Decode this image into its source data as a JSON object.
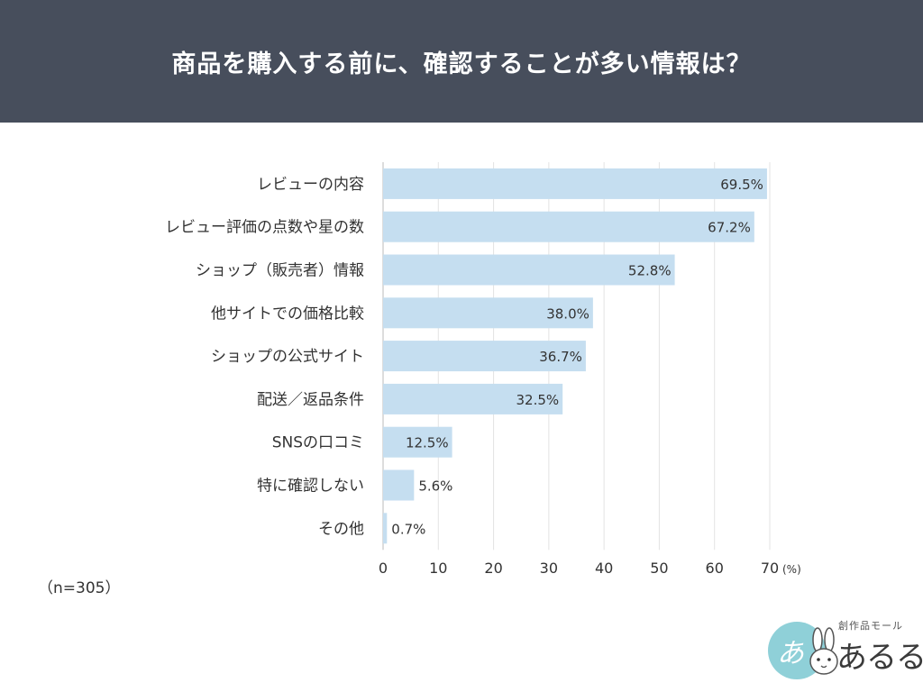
{
  "header": {
    "title": "商品を購入する前に、確認することが多い情報は？"
  },
  "chart_data": {
    "type": "bar",
    "orientation": "horizontal",
    "title": "商品を購入する前に、確認することが多い情報は？",
    "categories": [
      "レビューの内容",
      "レビュー評価の点数や星の数",
      "ショップ（販売者）情報",
      "他サイトでの価格比較",
      "ショップの公式サイト",
      "配送／返品条件",
      "SNSの口コミ",
      "特に確認しない",
      "その他"
    ],
    "values": [
      69.5,
      67.2,
      52.8,
      38.0,
      36.7,
      32.5,
      12.5,
      5.6,
      0.7
    ],
    "value_labels": [
      "69.5%",
      "67.2%",
      "52.8%",
      "38.0%",
      "36.7%",
      "32.5%",
      "12.5%",
      "5.6%",
      "0.7%"
    ],
    "xlim": [
      0,
      70
    ],
    "xticks": [
      "0",
      "10",
      "20",
      "30",
      "40",
      "50",
      "60",
      "70"
    ],
    "x_unit_label": "(%)",
    "grid": true,
    "bar_color": "#c5def0",
    "grid_color": "#e3e3e3"
  },
  "footnote": {
    "sample_size": "（n=305）"
  },
  "logo": {
    "subtitle": "創作品モール",
    "name": "あるる",
    "mark": "あ"
  }
}
